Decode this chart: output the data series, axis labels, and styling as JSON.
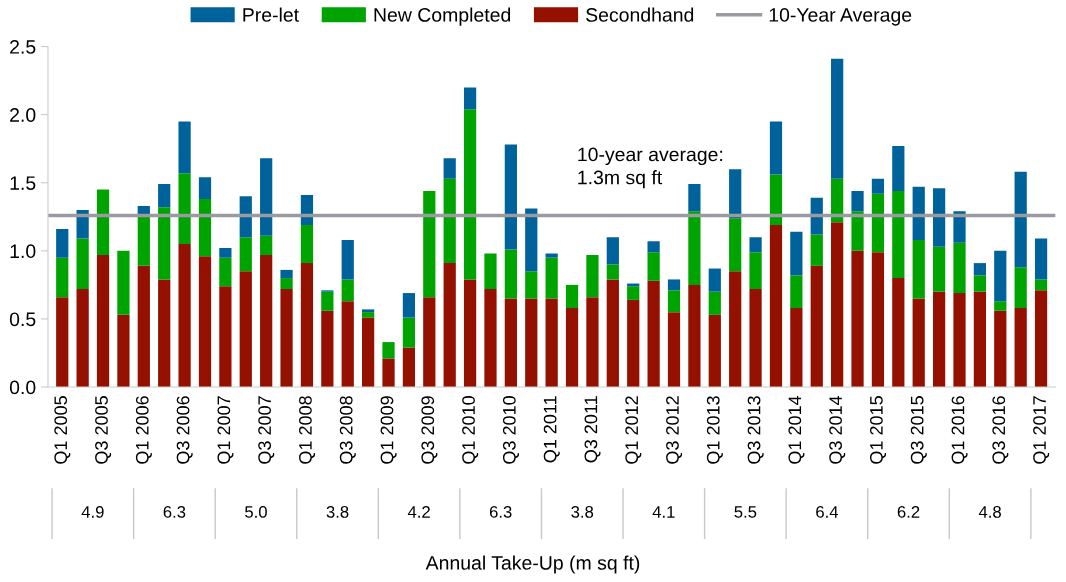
{
  "chart_data": {
    "type": "bar",
    "stacked": true,
    "categories": [
      "Q1 2005",
      null,
      "Q3 2005",
      null,
      "Q1 2006",
      null,
      "Q3 2006",
      null,
      "Q1 2007",
      null,
      "Q3 2007",
      null,
      "Q1 2008",
      null,
      "Q3 2008",
      null,
      "Q1 2009",
      null,
      "Q3 2009",
      null,
      "Q1 2010",
      null,
      "Q3 2010",
      null,
      "Q1 2011",
      null,
      "Q3 2011",
      null,
      "Q1 2012",
      null,
      "Q3 2012",
      null,
      "Q1 2013",
      null,
      "Q3 2013",
      null,
      "Q1 2014",
      null,
      "Q3 2014",
      null,
      "Q1 2015",
      null,
      "Q3 2015",
      null,
      "Q1 2016",
      null,
      "Q3 2016",
      null,
      "Q1 2017"
    ],
    "series": [
      {
        "name": "Secondhand",
        "color": "#941100",
        "values": [
          0.66,
          0.72,
          0.97,
          0.53,
          0.89,
          0.79,
          1.05,
          0.96,
          0.74,
          0.85,
          0.97,
          0.72,
          0.91,
          0.56,
          0.63,
          0.51,
          0.21,
          0.29,
          0.66,
          0.91,
          0.79,
          0.72,
          0.65,
          0.65,
          0.65,
          0.58,
          0.66,
          0.79,
          0.64,
          0.78,
          0.55,
          0.75,
          0.53,
          0.85,
          0.72,
          1.19,
          0.58,
          0.89,
          1.21,
          1.0,
          0.99,
          0.8,
          0.65,
          0.7,
          0.69,
          0.7,
          0.56,
          0.58,
          0.71
        ]
      },
      {
        "name": "New Completed",
        "color": "#00a400",
        "values": [
          0.29,
          0.37,
          0.48,
          0.47,
          0.38,
          0.53,
          0.52,
          0.42,
          0.21,
          0.25,
          0.14,
          0.08,
          0.28,
          0.14,
          0.16,
          0.04,
          0.12,
          0.22,
          0.78,
          0.62,
          1.25,
          0.26,
          0.36,
          0.2,
          0.3,
          0.17,
          0.31,
          0.11,
          0.1,
          0.21,
          0.16,
          0.54,
          0.17,
          0.39,
          0.27,
          0.37,
          0.24,
          0.23,
          0.32,
          0.29,
          0.43,
          0.64,
          0.43,
          0.33,
          0.37,
          0.12,
          0.07,
          0.3,
          0.08
        ]
      },
      {
        "name": "Pre-let",
        "color": "#00629b",
        "values": [
          0.21,
          0.21,
          0,
          0,
          0.06,
          0.17,
          0.38,
          0.16,
          0.07,
          0.3,
          0.57,
          0.06,
          0.22,
          0.01,
          0.29,
          0.02,
          0,
          0.18,
          0,
          0.15,
          0.16,
          0,
          0.77,
          0.46,
          0.03,
          0,
          0,
          0.2,
          0.02,
          0.08,
          0.08,
          0.2,
          0.17,
          0.36,
          0.11,
          0.39,
          0.32,
          0.27,
          0.88,
          0.15,
          0.11,
          0.33,
          0.39,
          0.43,
          0.23,
          0.09,
          0.37,
          0.7,
          0.3
        ]
      }
    ],
    "ref_lines": [
      {
        "axis": "y",
        "value": 1.26,
        "label": "10-Year Average",
        "color": "#9a9ba0"
      }
    ],
    "ylim": [
      0,
      2.5
    ],
    "yticks": [
      {
        "value": 0,
        "label": "0.0"
      },
      {
        "value": 0.5,
        "label": "0.5"
      },
      {
        "value": 1,
        "label": "1.0"
      },
      {
        "value": 1.5,
        "label": "1.5"
      },
      {
        "value": 2,
        "label": "2.0"
      },
      {
        "value": 2.5,
        "label": "2.5"
      }
    ],
    "xlabel": "Annual Take-Up (m sq ft)",
    "annotations": [
      "10-year average:\n1.3m sq ft",
      "4.9",
      "6.3",
      "5.0",
      "3.8",
      "4.2",
      "6.3",
      "3.8",
      "4.1",
      "5.5",
      "6.4",
      "6.2",
      "4.8"
    ],
    "legend": "top",
    "grid": false
  }
}
